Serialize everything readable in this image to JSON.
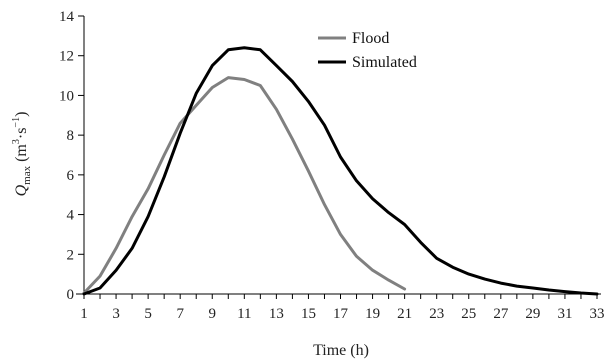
{
  "chart_data": {
    "type": "line",
    "xlabel": "Time (h)",
    "ylabel": {
      "base": "Q",
      "sub": "max",
      "units_open": " (m",
      "units_exp1": "3",
      "units_mid": "·s",
      "units_exp2": "−1",
      "units_close": ")"
    },
    "ylim": [
      0,
      14
    ],
    "xlim": [
      1,
      33
    ],
    "y_ticks": [
      0,
      2,
      4,
      6,
      8,
      10,
      12,
      14
    ],
    "x_tick_labels": [
      1,
      3,
      5,
      7,
      9,
      11,
      13,
      15,
      17,
      19,
      21,
      23,
      25,
      27,
      29,
      31,
      33
    ],
    "grid": false,
    "legend_position": "top-center",
    "series": [
      {
        "name": "Flood",
        "color": "#808080",
        "x": [
          1,
          2,
          3,
          4,
          5,
          6,
          7,
          8,
          9,
          10,
          11,
          12,
          13,
          14,
          15,
          16,
          17,
          18,
          19,
          20,
          21
        ],
        "values": [
          0.05,
          0.9,
          2.3,
          3.9,
          5.3,
          7.0,
          8.6,
          9.5,
          10.4,
          10.9,
          10.8,
          10.5,
          9.3,
          7.8,
          6.2,
          4.5,
          3.0,
          1.9,
          1.2,
          0.7,
          0.25
        ]
      },
      {
        "name": "Simulated",
        "color": "#000000",
        "x": [
          1,
          2,
          3,
          4,
          5,
          6,
          7,
          8,
          9,
          10,
          11,
          12,
          13,
          14,
          15,
          16,
          17,
          18,
          19,
          20,
          21,
          22,
          23,
          24,
          25,
          26,
          27,
          28,
          29,
          30,
          31,
          32,
          33
        ],
        "values": [
          0.0,
          0.3,
          1.2,
          2.3,
          3.9,
          5.9,
          8.1,
          10.1,
          11.5,
          12.3,
          12.4,
          12.3,
          11.5,
          10.7,
          9.7,
          8.5,
          6.9,
          5.7,
          4.8,
          4.1,
          3.5,
          2.6,
          1.8,
          1.35,
          1.0,
          0.75,
          0.55,
          0.4,
          0.3,
          0.2,
          0.12,
          0.05,
          0.0
        ]
      }
    ]
  }
}
